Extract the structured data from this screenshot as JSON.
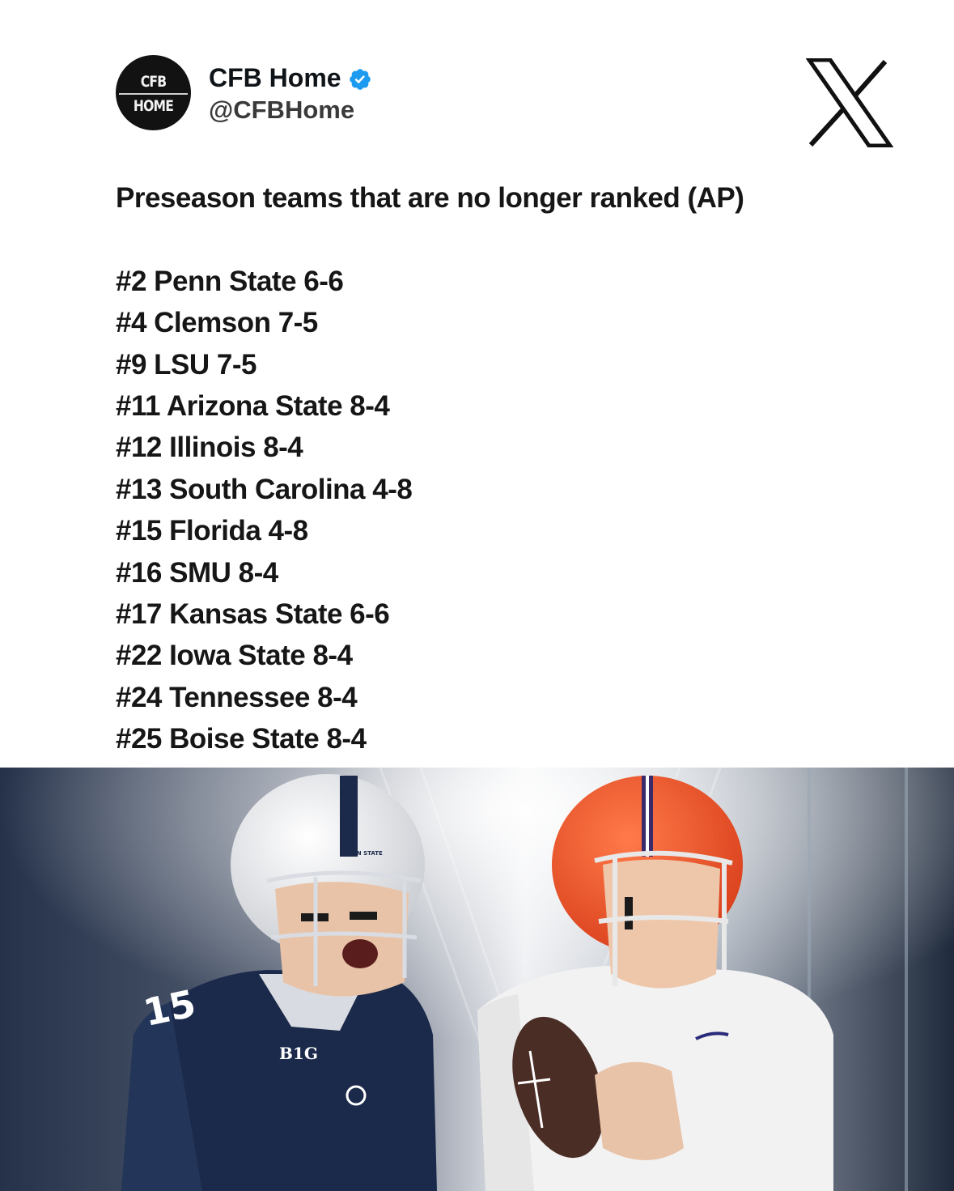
{
  "account": {
    "display_name": "CFB Home",
    "handle": "@CFBHome",
    "avatar_line1": "CFB",
    "avatar_line2": "HOME"
  },
  "icons": {
    "verified": "verified-badge-icon",
    "platform": "x-logo-icon"
  },
  "colors": {
    "verified": "#1d9bf0",
    "text": "#0f1419",
    "penn_state_navy": "#1b2a4a",
    "clemson_orange": "#f0552a"
  },
  "tweet": {
    "headline": "Preseason teams that are no longer ranked (AP)",
    "teams": [
      "#2 Penn State 6-6",
      "#4 Clemson 7-5",
      "#9 LSU 7-5",
      "#11 Arizona State 8-4",
      "#12 Illinois 8-4",
      "#13 South Carolina 4-8",
      "#15 Florida 4-8",
      "#16 SMU 8-4",
      "#17 Kansas State 6-6",
      "#22 Iowa State 8-4",
      "#24 Tennessee 8-4",
      "#25 Boise State 8-4"
    ]
  },
  "media": {
    "left_jersey_number": "15",
    "left_helmet_text": "PENN STATE",
    "left_chest_logo": "B1G"
  }
}
